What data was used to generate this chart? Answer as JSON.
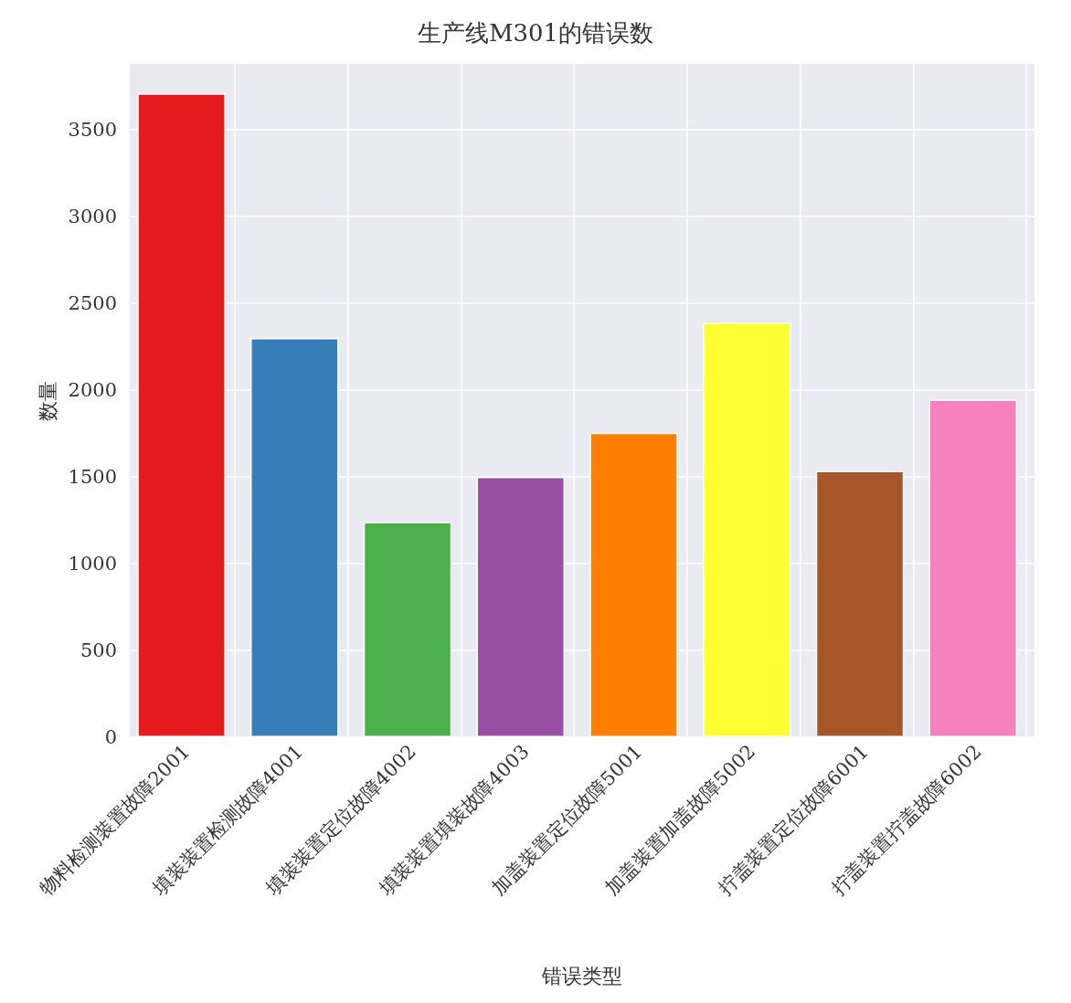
{
  "chart_data": {
    "type": "bar",
    "title": "生产线M301的错误数",
    "xlabel": "错误类型",
    "ylabel": "数量",
    "categories": [
      "物料检测装置故障2001",
      "填装装置检测故障4001",
      "填装装置定位故障4002",
      "填装装置填装故障4003",
      "加盖装置定位故障5001",
      "加盖装置加盖故障5002",
      "拧盖装置定位故障6001",
      "拧盖装置拧盖故障6002"
    ],
    "values": [
      3710,
      2300,
      1240,
      1500,
      1755,
      2390,
      1535,
      1945
    ],
    "colors": [
      "#e41a1c",
      "#377eb8",
      "#4daf4a",
      "#984ea3",
      "#ff7f00",
      "#ffff33",
      "#a65628",
      "#f781bf"
    ],
    "ylim": [
      0,
      3880
    ],
    "yticks": [
      0,
      500,
      1000,
      1500,
      2000,
      2500,
      3000,
      3500
    ],
    "grid": true
  }
}
